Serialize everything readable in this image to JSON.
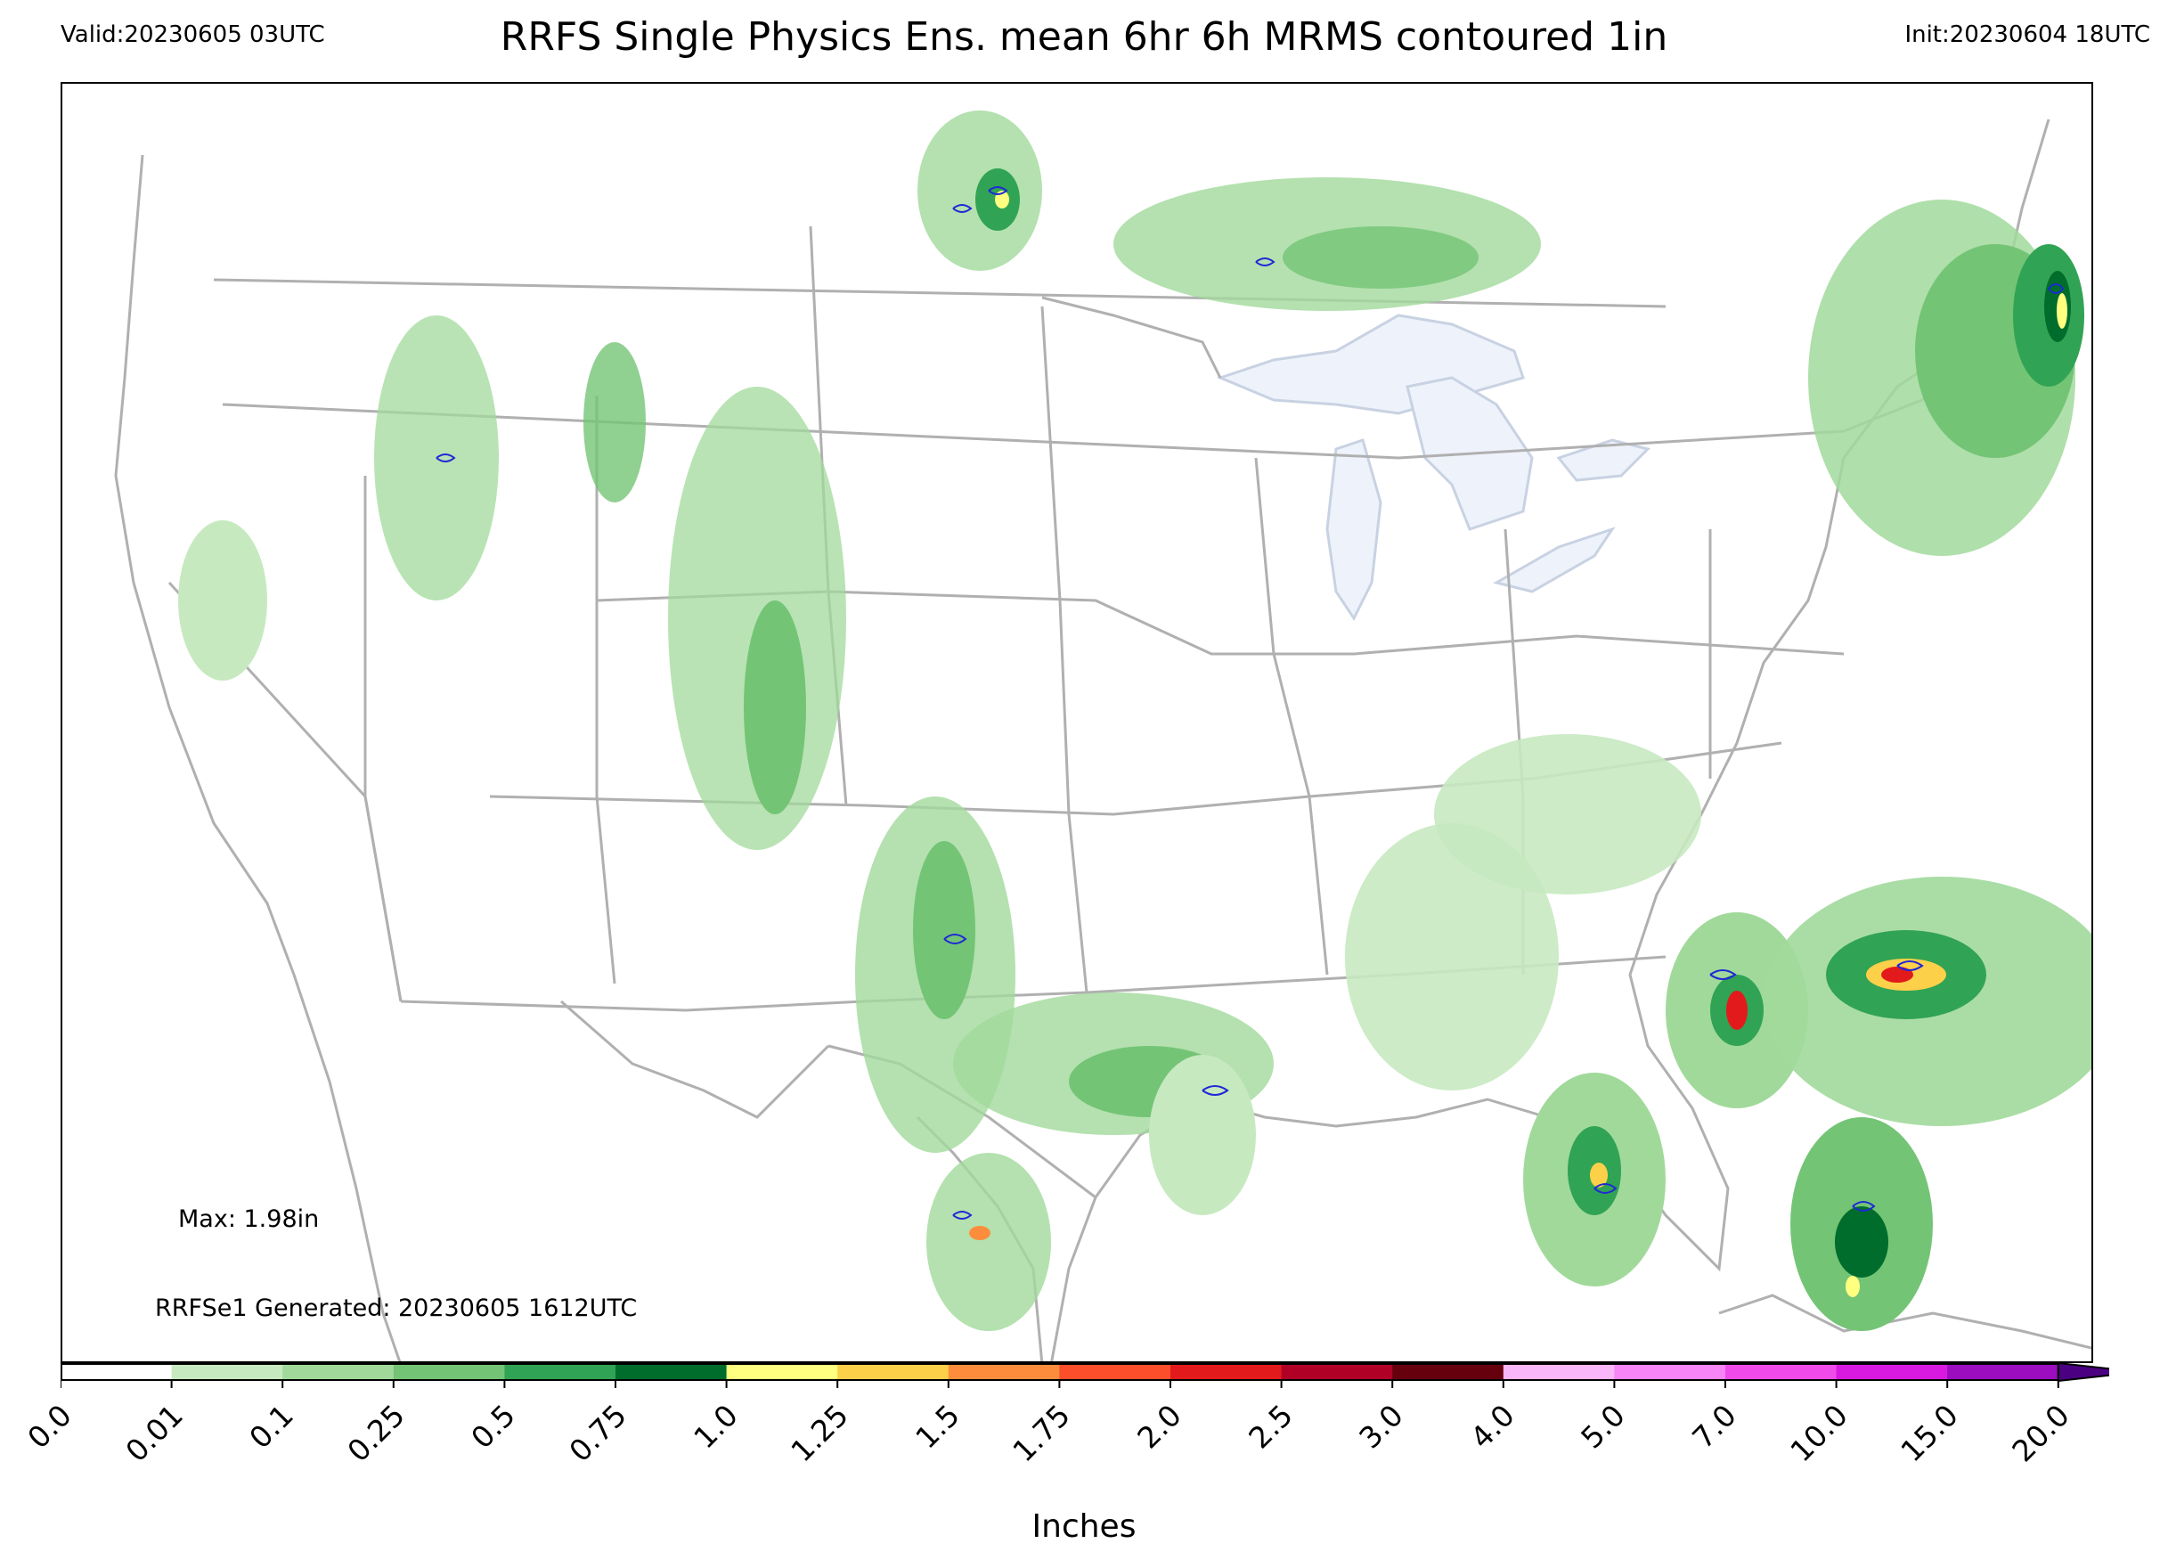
{
  "header": {
    "valid": "Valid:20230605 03UTC",
    "title": "RRFS Single Physics Ens. mean 6hr 6h MRMS contoured 1in",
    "init": "Init:20230604 18UTC"
  },
  "annotations": {
    "max": "Max: 1.98in",
    "generated": "RRFSe1 Generated: 20230605 1612UTC"
  },
  "colorbar": {
    "label": "Inches",
    "extend": "max",
    "bounds": [
      "0.0",
      "0.01",
      "0.1",
      "0.25",
      "0.5",
      "0.75",
      "1.0",
      "1.25",
      "1.5",
      "1.75",
      "2.0",
      "2.5",
      "3.0",
      "4.0",
      "5.0",
      "7.0",
      "10.0",
      "15.0",
      "20.0"
    ],
    "colors": [
      "#ffffff",
      "#c7e9c0",
      "#a1d99b",
      "#74c476",
      "#31a354",
      "#006d2c",
      "#ffff80",
      "#fdd049",
      "#fd8d3c",
      "#fc4e2a",
      "#e31a1c",
      "#b10026",
      "#67000d",
      "#f9b6f9",
      "#f785f5",
      "#f04aeb",
      "#d81ae0",
      "#9b0dbf"
    ],
    "extend_color": "#4b0082"
  },
  "map_colors": {
    "land": "#ffffff",
    "lakes": "#eef3fb",
    "borders": "#b0b0b0",
    "mrms_contour": "#1f28d6"
  }
}
